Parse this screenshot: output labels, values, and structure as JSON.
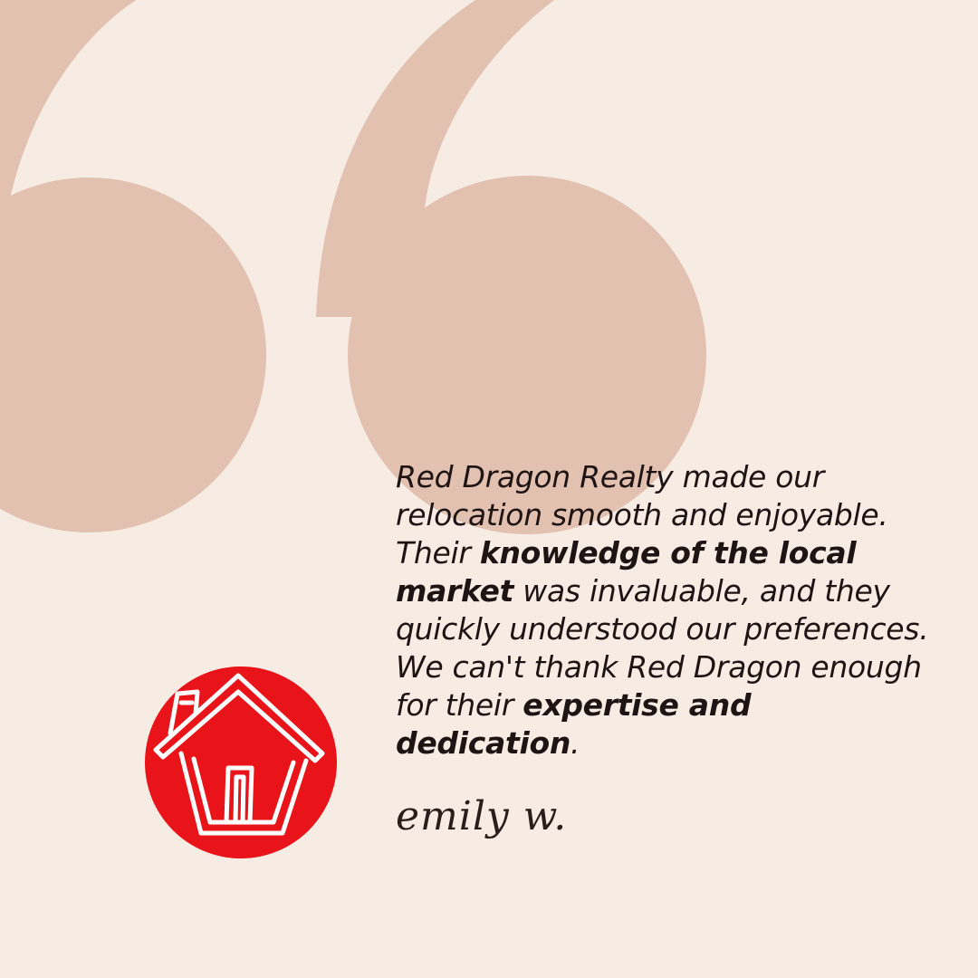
{
  "testimonial": {
    "segments": [
      {
        "text": "Red Dragon Realty made our relocation smooth and enjoyable. Their ",
        "bold": false
      },
      {
        "text": "knowledge of the local market",
        "bold": true
      },
      {
        "text": " was invaluable, and they quickly understood our preferences. We can't thank Red Dragon enough for their ",
        "bold": false
      },
      {
        "text": "expertise and dedication",
        "bold": true
      },
      {
        "text": ".",
        "bold": false
      }
    ],
    "author": "emily w."
  },
  "logo": {
    "icon": "house-icon",
    "background_color": "#e8141a",
    "line_color": "#ffffff"
  },
  "colors": {
    "background": "#f7ece4",
    "quote_mark": "#e2c1b1",
    "text": "#1f1414"
  }
}
